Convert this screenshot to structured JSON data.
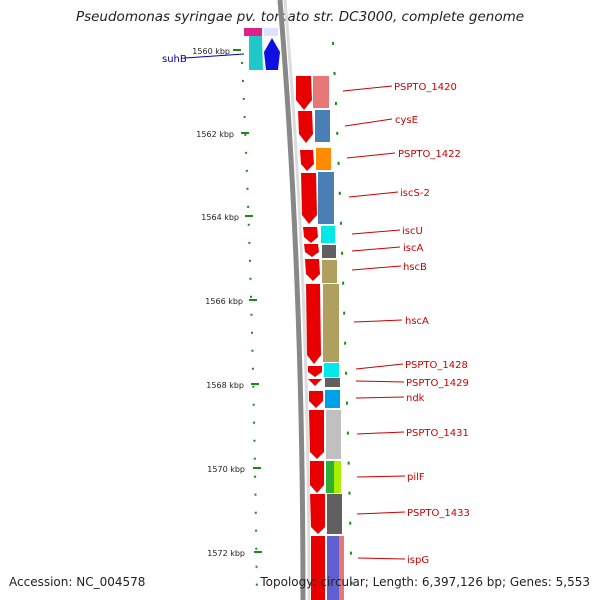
{
  "title": "Pseudomonas syringae pv. tomato str. DC3000, complete genome",
  "footer": {
    "accession": "Accession: NC_004578",
    "summary": "Topology: circular; Length: 6,397,126 bp; Genes: 5,553"
  },
  "ticks": [
    "1560 kbp",
    "1562 kbp",
    "1564 kbp",
    "1566 kbp",
    "1568 kbp",
    "1570 kbp",
    "1572 kbp"
  ],
  "colors": {
    "label_red": "#cc0000",
    "label_blue": "#0000aa",
    "tick_green": "#1a8a1a",
    "backbone": "#888888"
  },
  "genes": [
    {
      "name": "suhB",
      "color": "#1a1ac8"
    },
    {
      "name": "PSPTO_1420",
      "color": "#cc0000"
    },
    {
      "name": "cysE",
      "color": "#cc0000"
    },
    {
      "name": "PSPTO_1422",
      "color": "#cc0000"
    },
    {
      "name": "iscS-2",
      "color": "#cc0000"
    },
    {
      "name": "iscU",
      "color": "#cc0000"
    },
    {
      "name": "iscA",
      "color": "#cc0000"
    },
    {
      "name": "hscB",
      "color": "#cc0000"
    },
    {
      "name": "hscA",
      "color": "#cc0000"
    },
    {
      "name": "PSPTO_1428",
      "color": "#cc0000"
    },
    {
      "name": "PSPTO_1429",
      "color": "#cc0000"
    },
    {
      "name": "ndk",
      "color": "#cc0000"
    },
    {
      "name": "PSPTO_1431",
      "color": "#cc0000"
    },
    {
      "name": "pilF",
      "color": "#cc0000"
    },
    {
      "name": "PSPTO_1433",
      "color": "#cc0000"
    },
    {
      "name": "ispG",
      "color": "#cc0000"
    }
  ]
}
